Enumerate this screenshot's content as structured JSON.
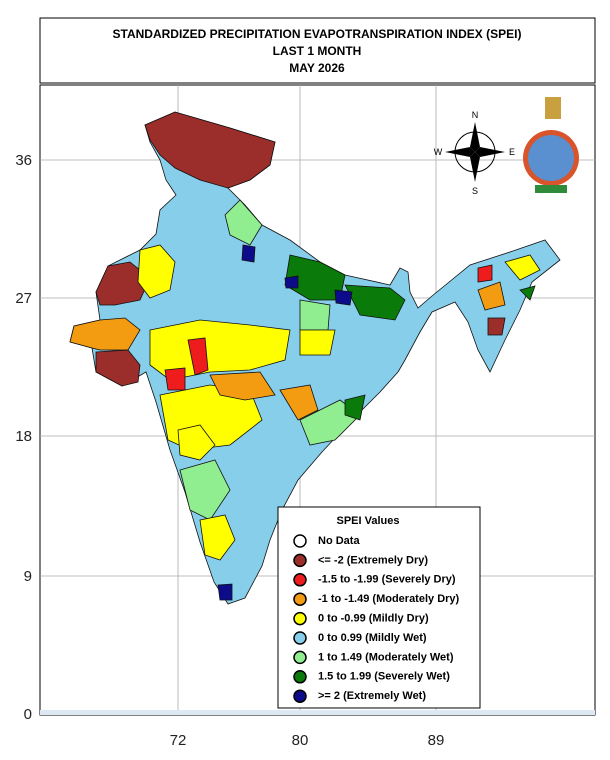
{
  "header": {
    "title_lines": [
      "STANDARDIZED PRECIPITATION EVAPOTRANSPIRATION INDEX (SPEI)",
      "LAST 1 MONTH",
      "MAY 2026"
    ]
  },
  "axes": {
    "y_ticks": [
      36,
      27,
      18,
      9,
      0
    ],
    "x_ticks": [
      72,
      80,
      89
    ]
  },
  "compass": {
    "n": "N",
    "e": "E",
    "s": "S",
    "w": "W"
  },
  "legend": {
    "title": "SPEI Values",
    "items": [
      {
        "label": "No Data",
        "color": "#ffffff"
      },
      {
        "label": "<= -2 (Extremely Dry)",
        "color": "#9b2d2a"
      },
      {
        "label": "-1.5 to -1.99 (Severely Dry)",
        "color": "#ee1c1c"
      },
      {
        "label": "-1 to -1.49 (Moderately Dry)",
        "color": "#f39c12"
      },
      {
        "label": "0 to -0.99 (Mildly  Dry)",
        "color": "#ffff00"
      },
      {
        "label": "0 to 0.99 (Mildly  Wet)",
        "color": "#87ceeb"
      },
      {
        "label": "1 to 1.49 (Moderately Wet)",
        "color": "#90ee90"
      },
      {
        "label": "1.5 to 1.99 (Severely Wet)",
        "color": "#0a7a0a"
      },
      {
        "label": ">= 2 (Extremely Wet)",
        "color": "#0c0c8a"
      }
    ]
  }
}
